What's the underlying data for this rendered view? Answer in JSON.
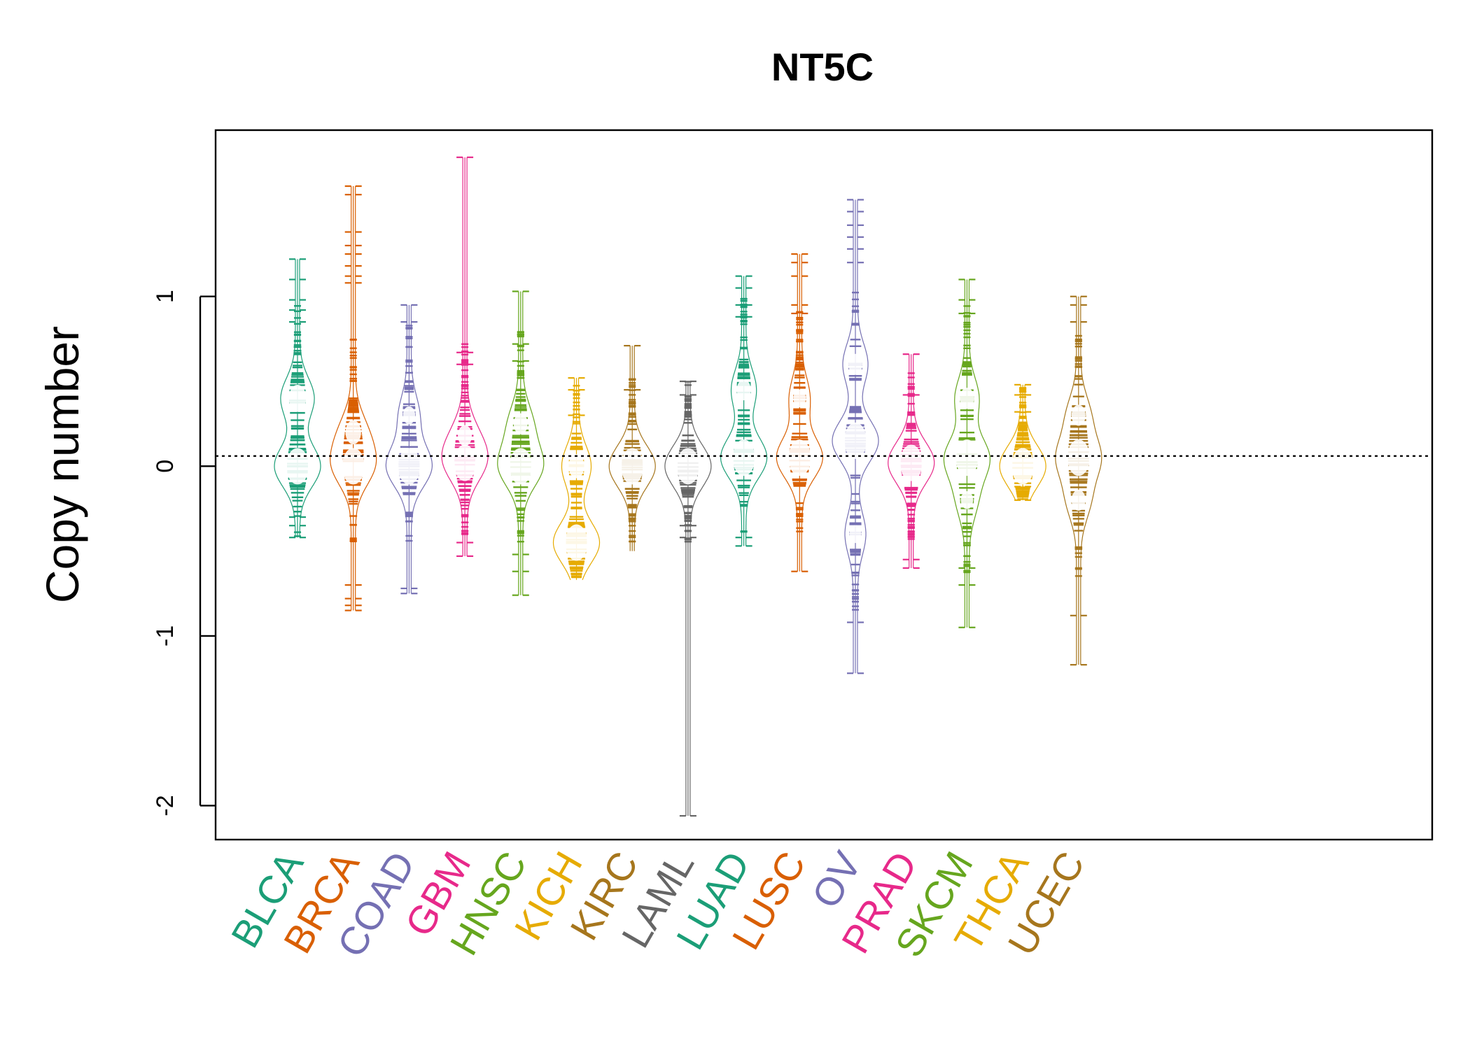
{
  "chart_data": {
    "type": "beanplot",
    "title": "NT5C",
    "xlabel": "",
    "ylabel": "Copy number",
    "ylim": [
      -2.2,
      1.98
    ],
    "yticks": [
      -2,
      -1,
      0,
      1
    ],
    "ytick_labels": [
      "-2",
      "-1",
      "0",
      "1"
    ],
    "reference_line": 0.06,
    "categories": [
      "BLCA",
      "BRCA",
      "COAD",
      "GBM",
      "HNSC",
      "KICH",
      "KIRC",
      "LAML",
      "LUAD",
      "LUSC",
      "OV",
      "PRAD",
      "SKCM",
      "THCA",
      "UCEC"
    ],
    "colors": [
      "#1B9E77",
      "#D95F02",
      "#7570B3",
      "#E7298A",
      "#66A61E",
      "#E6AB02",
      "#A6761D",
      "#666666",
      "#1B9E77",
      "#D95F02",
      "#7570B3",
      "#E7298A",
      "#66A61E",
      "#E6AB02",
      "#A6761D"
    ],
    "series": [
      {
        "name": "BLCA",
        "min": -0.42,
        "max": 1.22,
        "outliers": [
          1.22,
          1.1,
          0.98,
          0.92,
          0.85,
          -0.3,
          -0.35,
          -0.42
        ],
        "peaks": [
          [
            0.4,
            0.7
          ],
          [
            0.0,
            1.0
          ]
        ]
      },
      {
        "name": "BRCA",
        "min": -0.85,
        "max": 1.65,
        "outliers": [
          1.65,
          1.6,
          1.38,
          1.3,
          1.25,
          1.18,
          1.12,
          1.08,
          -0.7,
          -0.78,
          -0.82,
          -0.85
        ],
        "peaks": [
          [
            0.0,
            1.0
          ],
          [
            0.2,
            0.6
          ]
        ]
      },
      {
        "name": "COAD",
        "min": -0.75,
        "max": 0.95,
        "outliers": [
          0.95,
          0.85,
          -0.72,
          -0.75
        ],
        "peaks": [
          [
            0.0,
            1.0
          ],
          [
            0.3,
            0.4
          ]
        ]
      },
      {
        "name": "GBM",
        "min": -0.53,
        "max": 1.82,
        "outliers": [
          1.82,
          0.67,
          0.6,
          -0.45,
          -0.53
        ],
        "peaks": [
          [
            0.02,
            1.0
          ],
          [
            0.18,
            0.5
          ]
        ]
      },
      {
        "name": "HNSC",
        "min": -0.76,
        "max": 1.03,
        "outliers": [
          1.03,
          0.72,
          0.62,
          -0.52,
          -0.62,
          -0.76
        ],
        "peaks": [
          [
            0.0,
            1.0
          ],
          [
            0.25,
            0.5
          ]
        ]
      },
      {
        "name": "KICH",
        "min": -0.67,
        "max": 0.52,
        "outliers": [
          0.52,
          0.45,
          0.3
        ],
        "peaks": [
          [
            -0.45,
            1.0
          ],
          [
            0.0,
            0.6
          ]
        ]
      },
      {
        "name": "KIRC",
        "min": -0.5,
        "max": 0.71,
        "outliers": [
          0.71,
          0.45
        ],
        "peaks": [
          [
            0.0,
            1.0
          ]
        ]
      },
      {
        "name": "LAML",
        "min": -2.06,
        "max": 0.5,
        "outliers": [
          0.5,
          0.42,
          -0.35,
          -0.42,
          -2.06
        ],
        "peaks": [
          [
            0.0,
            1.0
          ]
        ]
      },
      {
        "name": "LUAD",
        "min": -0.47,
        "max": 1.12,
        "outliers": [
          1.12,
          1.05,
          0.95,
          0.88,
          -0.42,
          -0.47
        ],
        "peaks": [
          [
            0.05,
            1.0
          ],
          [
            0.45,
            0.5
          ]
        ]
      },
      {
        "name": "LUSC",
        "min": -0.62,
        "max": 1.25,
        "outliers": [
          1.25,
          1.2,
          1.12,
          0.95,
          0.9,
          -0.62
        ],
        "peaks": [
          [
            0.05,
            1.0
          ],
          [
            0.4,
            0.4
          ]
        ]
      },
      {
        "name": "OV",
        "min": -1.22,
        "max": 1.57,
        "outliers": [
          1.57,
          1.5,
          1.42,
          1.35,
          1.28,
          1.2,
          -0.92,
          -1.22
        ],
        "peaks": [
          [
            0.15,
            1.0
          ],
          [
            0.6,
            0.5
          ],
          [
            -0.4,
            0.4
          ]
        ]
      },
      {
        "name": "PRAD",
        "min": -0.6,
        "max": 0.66,
        "outliers": [
          0.66,
          0.42,
          -0.55,
          -0.6
        ],
        "peaks": [
          [
            0.02,
            1.0
          ]
        ]
      },
      {
        "name": "SKCM",
        "min": -0.95,
        "max": 1.1,
        "outliers": [
          1.1,
          0.98,
          0.9,
          -0.6,
          -0.7,
          -0.95
        ],
        "peaks": [
          [
            0.05,
            1.0
          ],
          [
            0.4,
            0.5
          ],
          [
            -0.2,
            0.4
          ]
        ]
      },
      {
        "name": "THCA",
        "min": -0.2,
        "max": 0.48,
        "outliers": [
          0.48,
          0.42,
          0.32,
          -0.12,
          -0.2
        ],
        "peaks": [
          [
            0.0,
            1.0
          ]
        ]
      },
      {
        "name": "UCEC",
        "min": -1.17,
        "max": 1.0,
        "outliers": [
          1.0,
          0.95,
          0.85,
          -0.88,
          -1.17
        ],
        "peaks": [
          [
            0.05,
            1.0
          ],
          [
            0.3,
            0.5
          ],
          [
            -0.2,
            0.5
          ]
        ]
      }
    ]
  }
}
